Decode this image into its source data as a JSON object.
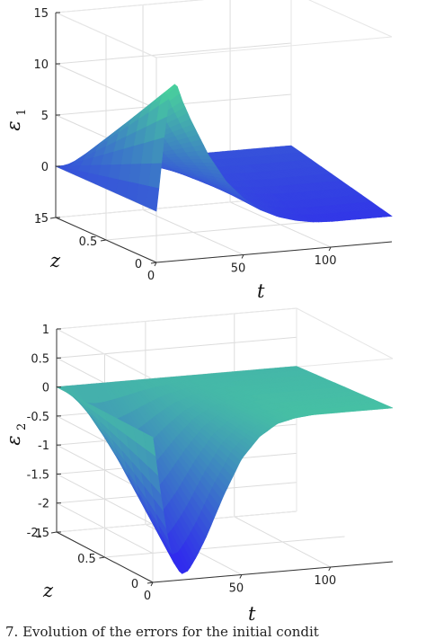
{
  "caption": "7. Evolution of the errors for the initial condit",
  "colors": {
    "low": "#2e1cf5",
    "high": "#4ef58a",
    "frame": "#333333",
    "grid": "#dcdcdc"
  },
  "chart_data": [
    {
      "type": "surface",
      "title": "",
      "zlabel": "ε",
      "zlabel_sub": "1",
      "xlabel": "t",
      "ylabel": "z",
      "x_ticks": [
        "0",
        "50",
        "100"
      ],
      "y_ticks": [
        "0",
        "0.5",
        "1"
      ],
      "z_ticks": [
        "-5",
        "0",
        "5",
        "10",
        "15"
      ],
      "xlim": [
        0,
        135
      ],
      "ylim": [
        0,
        1
      ],
      "zlim": [
        -5,
        15
      ],
      "grid": true,
      "colormap": "winter",
      "profile_t": [
        0,
        2,
        5,
        8,
        10,
        12,
        15,
        20,
        30,
        40,
        50,
        60,
        70,
        80,
        90,
        100,
        115,
        135
      ],
      "profile_value": [
        0,
        3,
        8,
        11.5,
        12.3,
        12,
        10.5,
        8.5,
        5,
        2.3,
        0.5,
        -0.8,
        -1.6,
        -2.1,
        -2.4,
        -2.5,
        -2.5,
        -2.5
      ]
    },
    {
      "type": "surface",
      "title": "",
      "zlabel": "ε",
      "zlabel_sub": "2",
      "xlabel": "t",
      "ylabel": "z",
      "x_ticks": [
        "0",
        "50",
        "100"
      ],
      "y_ticks": [
        "0",
        "0.5",
        "1"
      ],
      "z_ticks": [
        "-2.5",
        "-2",
        "-1.5",
        "-1",
        "-0.5",
        "0",
        "0.5",
        "1"
      ],
      "xlim": [
        0,
        135
      ],
      "ylim": [
        0,
        1
      ],
      "zlim": [
        -2.5,
        1
      ],
      "grid": true,
      "colormap": "winter",
      "profile_t": [
        0,
        4,
        8,
        12,
        16,
        20,
        25,
        30,
        40,
        50,
        60,
        70,
        80,
        90,
        100,
        115,
        135
      ],
      "profile_value": [
        0,
        -0.9,
        -1.7,
        -2.2,
        -2.4,
        -2.35,
        -2.1,
        -1.8,
        -1.1,
        -0.5,
        -0.15,
        0.05,
        0.12,
        0.15,
        0.15,
        0.15,
        0.15
      ]
    }
  ]
}
